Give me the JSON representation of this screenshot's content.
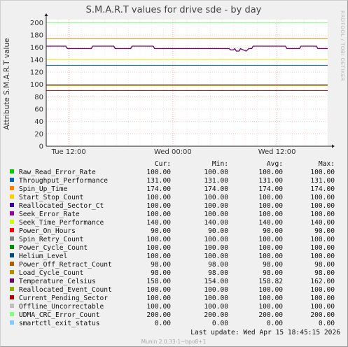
{
  "chart_data": {
    "type": "line",
    "title": "S.M.A.R.T values for drive sde - by day",
    "ylabel": "Attribute S.M.A.R.T value",
    "side_label": "RRDTOOL / TOBI OETIKER",
    "ylim": [
      0,
      205
    ],
    "y_ticks": [
      "0",
      "20",
      "40",
      "60",
      "80",
      "100",
      "120",
      "140",
      "160",
      "180",
      "200"
    ],
    "x_ticks": [
      "Tue 12:00",
      "Wed 00:00",
      "Wed 12:00"
    ],
    "x_tick_pos": [
      0.08,
      0.45,
      0.82
    ],
    "grid": true,
    "columns": [
      "Cur:",
      "Min:",
      "Avg:",
      "Max:"
    ],
    "series": [
      {
        "name": "Raw_Read_Error_Rate",
        "color": "#00cc00",
        "values": [
          100,
          100,
          100,
          100
        ]
      },
      {
        "name": "Throughput_Performance",
        "color": "#0066b3",
        "values": [
          131,
          131,
          131,
          131
        ]
      },
      {
        "name": "Spin_Up_Time",
        "color": "#ff8000",
        "values": [
          174,
          174,
          174,
          174
        ]
      },
      {
        "name": "Start_Stop_Count",
        "color": "#ffcc00",
        "values": [
          100,
          100,
          100,
          100
        ]
      },
      {
        "name": "Reallocated_Sector_Ct",
        "color": "#330099",
        "values": [
          100,
          100,
          100,
          100
        ]
      },
      {
        "name": "Seek_Error_Rate",
        "color": "#990099",
        "values": [
          100,
          100,
          100,
          100
        ]
      },
      {
        "name": "Seek_Time_Performance",
        "color": "#ccff00",
        "values": [
          140,
          140,
          140,
          140
        ]
      },
      {
        "name": "Power_On_Hours",
        "color": "#ff0000",
        "values": [
          90,
          90,
          90,
          90
        ]
      },
      {
        "name": "Spin_Retry_Count",
        "color": "#808080",
        "values": [
          100,
          100,
          100,
          100
        ]
      },
      {
        "name": "Power_Cycle_Count",
        "color": "#008f00",
        "values": [
          100,
          100,
          100,
          100
        ]
      },
      {
        "name": "Helium_Level",
        "color": "#00487d",
        "values": [
          100,
          100,
          100,
          100
        ]
      },
      {
        "name": "Power_Off_Retract_Count",
        "color": "#b35a00",
        "values": [
          98,
          98,
          98,
          98
        ]
      },
      {
        "name": "Load_Cycle_Count",
        "color": "#b38f00",
        "values": [
          98,
          98,
          98,
          98
        ]
      },
      {
        "name": "Temperature_Celsius",
        "color": "#6b006b",
        "values": [
          158,
          154,
          158.82,
          162
        ]
      },
      {
        "name": "Reallocated_Event_Count",
        "color": "#8fb300",
        "values": [
          100,
          100,
          100,
          100
        ]
      },
      {
        "name": "Current_Pending_Sector",
        "color": "#b30000",
        "values": [
          100,
          100,
          100,
          100
        ]
      },
      {
        "name": "Offline_Uncorrectable",
        "color": "#bebebe",
        "values": [
          100,
          100,
          100,
          100
        ]
      },
      {
        "name": "UDMA_CRC_Error_Count",
        "color": "#80ff80",
        "values": [
          200,
          200,
          200,
          200
        ]
      },
      {
        "name": "smartctl_exit_status",
        "color": "#80c9ff",
        "values": [
          0,
          0,
          0,
          0
        ]
      }
    ],
    "value_strings": [
      [
        "100.00",
        "100.00",
        "100.00",
        "100.00"
      ],
      [
        "131.00",
        "131.00",
        "131.00",
        "131.00"
      ],
      [
        "174.00",
        "174.00",
        "174.00",
        "174.00"
      ],
      [
        "100.00",
        "100.00",
        "100.00",
        "100.00"
      ],
      [
        "100.00",
        "100.00",
        "100.00",
        "100.00"
      ],
      [
        "100.00",
        "100.00",
        "100.00",
        "100.00"
      ],
      [
        "140.00",
        "140.00",
        "140.00",
        "140.00"
      ],
      [
        "90.00",
        "90.00",
        "90.00",
        "90.00"
      ],
      [
        "100.00",
        "100.00",
        "100.00",
        "100.00"
      ],
      [
        "100.00",
        "100.00",
        "100.00",
        "100.00"
      ],
      [
        "100.00",
        "100.00",
        "100.00",
        "100.00"
      ],
      [
        "98.00",
        "98.00",
        "98.00",
        "98.00"
      ],
      [
        "98.00",
        "98.00",
        "98.00",
        "98.00"
      ],
      [
        "158.00",
        "154.00",
        "158.82",
        "162.00"
      ],
      [
        "100.00",
        "100.00",
        "100.00",
        "100.00"
      ],
      [
        "100.00",
        "100.00",
        "100.00",
        "100.00"
      ],
      [
        "100.00",
        "100.00",
        "100.00",
        "100.00"
      ],
      [
        "200.00",
        "200.00",
        "200.00",
        "200.00"
      ],
      [
        "0.00",
        "0.00",
        "0.00",
        "0.00"
      ]
    ],
    "temperature_trace": [
      [
        0.0,
        162
      ],
      [
        0.07,
        162
      ],
      [
        0.075,
        158
      ],
      [
        0.16,
        158
      ],
      [
        0.165,
        162
      ],
      [
        0.24,
        162
      ],
      [
        0.245,
        158
      ],
      [
        0.3,
        158
      ],
      [
        0.305,
        162
      ],
      [
        0.38,
        162
      ],
      [
        0.385,
        158
      ],
      [
        0.65,
        158
      ],
      [
        0.655,
        156
      ],
      [
        0.665,
        156
      ],
      [
        0.67,
        158
      ],
      [
        0.675,
        154
      ],
      [
        0.685,
        154
      ],
      [
        0.69,
        158
      ],
      [
        0.7,
        156
      ],
      [
        0.71,
        154
      ],
      [
        0.72,
        158
      ],
      [
        0.73,
        158
      ],
      [
        0.735,
        162
      ],
      [
        0.85,
        162
      ],
      [
        0.855,
        158
      ],
      [
        0.9,
        158
      ],
      [
        0.905,
        162
      ],
      [
        0.96,
        162
      ],
      [
        0.965,
        158
      ],
      [
        1.0,
        158
      ]
    ],
    "last_update": "Last update:  Wed Apr 15 18:45:15 2026",
    "munin_version": "Munin 2.0.33-1~bpo8+1"
  }
}
